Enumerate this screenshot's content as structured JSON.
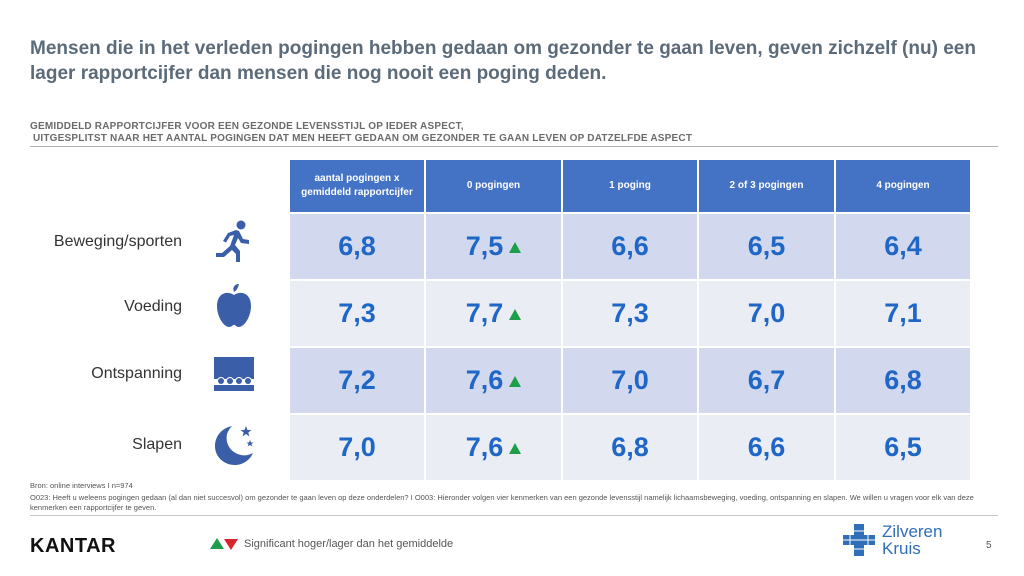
{
  "slide": {
    "title": "Mensen die in het verleden pogingen hebben gedaan om gezonder te gaan leven, geven zichzelf (nu) een lager rapportcijfer dan mensen die nog nooit een poging deden.",
    "subtitle_line1": "GEMIDDELD RAPPORTCIJFER VOOR EEN GEZONDE LEVENSSTIJL OP IEDER ASPECT,",
    "subtitle_line2": " UITGESPLITST NAAR HET AANTAL POGINGEN DAT MEN HEEFT GEDAAN OM GEZONDER TE GAAN LEVEN OP DATZELFDE ASPECT"
  },
  "table": {
    "headers": [
      "aantal pogingen x gemiddeld rapportcijfer",
      "0 pogingen",
      "1 poging",
      "2 of 3 pogingen",
      "4 pogingen"
    ],
    "rows": [
      {
        "label": "Beweging/sporten",
        "icon": "runner-icon",
        "values": [
          "6,8",
          "7,5",
          "6,6",
          "6,5",
          "6,4"
        ],
        "up_marker_col": 1
      },
      {
        "label": "Voeding",
        "icon": "apple-icon",
        "values": [
          "7,3",
          "7,7",
          "7,3",
          "7,0",
          "7,1"
        ],
        "up_marker_col": 1
      },
      {
        "label": "Ontspanning",
        "icon": "audience-icon",
        "values": [
          "7,2",
          "7,6",
          "7,0",
          "6,7",
          "6,8"
        ],
        "up_marker_col": 1
      },
      {
        "label": "Slapen",
        "icon": "moon-stars-icon",
        "values": [
          "7,0",
          "7,6",
          "6,8",
          "6,6",
          "6,5"
        ],
        "up_marker_col": 1
      }
    ]
  },
  "footer": {
    "source": "Bron: online interviews I n=974",
    "questions": "O023: Heeft u weleens pogingen gedaan (al dan niet succesvol) om gezonder te gaan leven op deze onderdelen? I O003: Hieronder volgen vier kenmerken van een gezonde levensstijl namelijk lichaamsbeweging, voeding, ontspanning en slapen. We willen u vragen voor elk van deze kenmerken een rapportcijfer te geven.",
    "brand": "KANTAR",
    "legend_text": "Significant hoger/lager dan het gemiddelde",
    "logo_line1": "Zilveren",
    "logo_line2": "Kruis",
    "page_number": "5"
  },
  "colors": {
    "header_bg": "#4472c4",
    "row_dark": "#d2d9ee",
    "row_light": "#eaedf3",
    "value_text": "#1f66c7",
    "icon": "#3a5fa8",
    "up_marker": "#1e9e4a",
    "down_marker": "#d8262f"
  }
}
